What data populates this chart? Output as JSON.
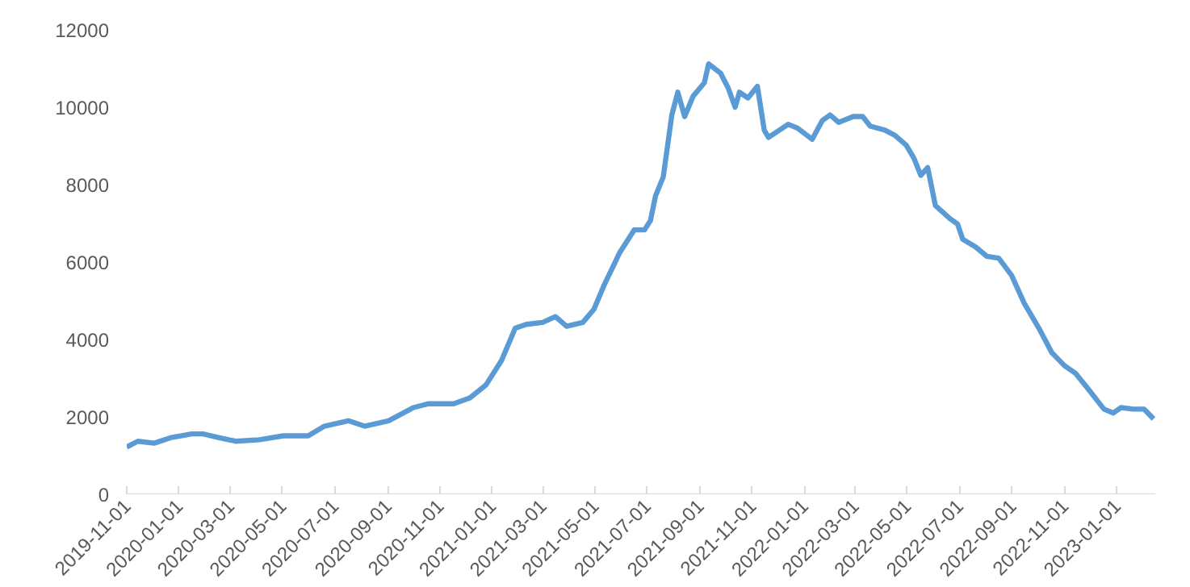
{
  "chart_data": {
    "type": "line",
    "x": [
      "2019-11-01",
      "2019-11-14",
      "2019-12-03",
      "2019-12-22",
      "2020-01-16",
      "2020-01-29",
      "2020-02-17",
      "2020-03-07",
      "2020-04-04",
      "2020-05-02",
      "2020-05-31",
      "2020-06-19",
      "2020-07-17",
      "2020-08-05",
      "2020-09-02",
      "2020-10-01",
      "2020-10-19",
      "2020-11-17",
      "2020-12-06",
      "2020-12-25",
      "2021-01-12",
      "2021-01-28",
      "2021-02-10",
      "2021-03-01",
      "2021-03-16",
      "2021-03-29",
      "2021-04-17",
      "2021-04-30",
      "2021-05-12",
      "2021-05-30",
      "2021-06-16",
      "2021-06-28",
      "2021-07-05",
      "2021-07-11",
      "2021-07-20",
      "2021-07-30",
      "2021-08-06",
      "2021-08-14",
      "2021-08-24",
      "2021-09-06",
      "2021-09-11",
      "2021-09-25",
      "2021-10-04",
      "2021-10-12",
      "2021-10-17",
      "2021-10-27",
      "2021-11-07",
      "2021-11-15",
      "2021-11-20",
      "2021-12-13",
      "2021-12-24",
      "2022-01-10",
      "2022-01-22",
      "2022-01-31",
      "2022-02-10",
      "2022-02-27",
      "2022-03-10",
      "2022-03-19",
      "2022-04-05",
      "2022-04-17",
      "2022-04-30",
      "2022-05-09",
      "2022-05-17",
      "2022-05-25",
      "2022-06-03",
      "2022-06-20",
      "2022-06-29",
      "2022-07-05",
      "2022-07-20",
      "2022-08-02",
      "2022-08-16",
      "2022-08-31",
      "2022-09-15",
      "2022-10-02",
      "2022-10-17",
      "2022-11-01",
      "2022-11-14",
      "2022-11-30",
      "2022-12-17",
      "2022-12-28",
      "2023-01-06",
      "2023-01-20",
      "2023-02-02",
      "2023-02-13"
    ],
    "series": [
      {
        "color": "#5b9bd5",
        "values": [
          1220,
          1370,
          1320,
          1460,
          1560,
          1560,
          1460,
          1370,
          1410,
          1510,
          1510,
          1760,
          1900,
          1760,
          1900,
          2240,
          2340,
          2340,
          2490,
          2830,
          3460,
          4290,
          4390,
          4440,
          4590,
          4340,
          4440,
          4780,
          5410,
          6240,
          6830,
          6830,
          7070,
          7710,
          8200,
          9800,
          10390,
          9760,
          10290,
          10630,
          11120,
          10880,
          10490,
          10000,
          10390,
          10240,
          10540,
          9410,
          9220,
          9560,
          9460,
          9170,
          9660,
          9800,
          9610,
          9760,
          9760,
          9510,
          9410,
          9270,
          9020,
          8680,
          8240,
          8440,
          7460,
          7120,
          6980,
          6590,
          6390,
          6150,
          6100,
          5660,
          4930,
          4290,
          3660,
          3320,
          3120,
          2680,
          2200,
          2100,
          2240,
          2200,
          2200,
          1950
        ]
      }
    ],
    "xlim": [
      "2019-11-01",
      "2023-02-15"
    ],
    "xticks": [
      "2019-11-01",
      "2020-01-01",
      "2020-03-01",
      "2020-05-01",
      "2020-07-01",
      "2020-09-01",
      "2020-11-01",
      "2021-01-01",
      "2021-03-01",
      "2021-05-01",
      "2021-07-01",
      "2021-09-01",
      "2021-11-01",
      "2022-01-01",
      "2022-03-01",
      "2022-05-01",
      "2022-07-01",
      "2022-09-01",
      "2022-11-01",
      "2023-01-01"
    ],
    "ylim": [
      0,
      12000
    ],
    "yticks": [
      0,
      2000,
      4000,
      6000,
      8000,
      10000,
      12000
    ],
    "grid": false,
    "marker": "none",
    "line_style": "solid"
  }
}
